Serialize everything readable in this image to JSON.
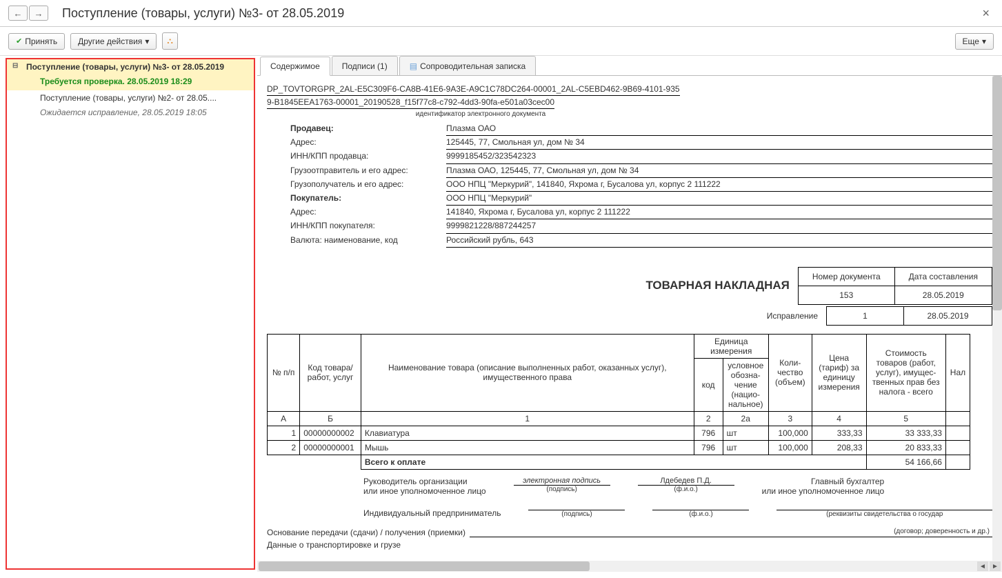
{
  "window": {
    "title": "Поступление (товары, услуги) №3- от 28.05.2019"
  },
  "toolbar": {
    "accept": "Принять",
    "other_actions": "Другие действия",
    "more": "Еще"
  },
  "sidebar": {
    "item1": {
      "title": "Поступление (товары, услуги) №3- от 28.05.2019",
      "status": "Требуется проверка. 28.05.2019 18:29"
    },
    "item2": {
      "title": "Поступление (товары, услуги) №2- от 28.05....",
      "status": "Ожидается исправление, 28.05.2019 18:05"
    }
  },
  "tabs": {
    "content": "Содержимое",
    "signatures": "Подписи (1)",
    "note": "Сопроводительная записка"
  },
  "doc": {
    "id_line1": "DP_TOVTORGPR_2AL-E5C309F6-CA8B-41E6-9A3E-A9C1C78DC264-00001_2AL-C5EBD462-9B69-4101-935",
    "id_line2": "9-B1845EEA1763-00001_20190528_f15f77c8-c792-4dd3-90fa-e501a03cec00",
    "id_caption": "идентификатор электронного документа",
    "labels": {
      "seller": "Продавец:",
      "address": "Адрес:",
      "seller_inn": "ИНН/КПП продавца:",
      "shipper": "Грузоотправитель и его адрес:",
      "consignee": "Грузополучатель и его адрес:",
      "buyer": "Покупатель:",
      "buyer_address": "Адрес:",
      "buyer_inn": "ИНН/КПП покупателя:",
      "currency": "Валюта: наименование, код"
    },
    "values": {
      "seller": "Плазма ОАО",
      "address": "125445, 77, Смольная ул, дом № 34",
      "seller_inn": "9999185452/323542323",
      "shipper": "Плазма ОАО, 125445, 77, Смольная ул, дом № 34",
      "consignee": "ООО НПЦ \"Меркурий\", 141840, Яхрома г, Бусалова ул, корпус 2 111222",
      "buyer": "ООО НПЦ \"Меркурий\"",
      "buyer_address": "141840, Яхрома г, Бусалова ул, корпус 2 111222",
      "buyer_inn": "9999821228/887244257",
      "currency": "Российский рубль, 643"
    },
    "invoice": {
      "title": "ТОВАРНАЯ НАКЛАДНАЯ",
      "h_num": "Номер документа",
      "h_date": "Дата составления",
      "num": "153",
      "date": "28.05.2019",
      "correction_label": "Исправление",
      "corr_num": "1",
      "corr_date": "28.05.2019"
    },
    "goods": {
      "headers": {
        "npp": "№ п/п",
        "code": "Код товара/ работ, услуг",
        "name": "Наименование товара (описание выполненных работ, оказанных услуг), имущественного права",
        "unit_group": "Единица измерения",
        "unit_code": "код",
        "unit_name": "условное обозна-чение (нацио-нальное)",
        "qty": "Коли-чество (объем)",
        "price": "Цена (тариф) за единицу измерения",
        "cost": "Стоимость товаров (работ, услуг), имущес-твенных прав без налога - всего",
        "extra": "Нал"
      },
      "cols": {
        "a": "А",
        "b": "Б",
        "c1": "1",
        "c2": "2",
        "c2a": "2а",
        "c3": "3",
        "c4": "4",
        "c5": "5"
      },
      "rows": [
        {
          "n": "1",
          "code": "00000000002",
          "name": "Клавиатура",
          "ucode": "796",
          "uname": "шт",
          "qty": "100,000",
          "price": "333,33",
          "cost": "33 333,33"
        },
        {
          "n": "2",
          "code": "00000000001",
          "name": "Мышь",
          "ucode": "796",
          "uname": "шт",
          "qty": "100,000",
          "price": "208,33",
          "cost": "20 833,33"
        }
      ],
      "total_label": "Всего к оплате",
      "total": "54 166,66"
    },
    "sign": {
      "head1": "Руководитель организации",
      "head2": "или иное уполномоченное лицо",
      "esign": "электронная подпись",
      "sign_sub": "(подпись)",
      "fio": "Лдебедев П.Д.",
      "fio_sub": "(ф.и.о.)",
      "chief_acc1": "Главный бухгалтер",
      "chief_acc2": "или иное уполномоченное лицо",
      "ip": "Индивидуальный предприниматель",
      "rekv": "(реквизиты свидетельства о государ"
    },
    "footer": {
      "basis": "Основание передачи (сдачи) / получения (приемки)",
      "basis_hint": "(договор; доверенность и др.)",
      "transport": "Данные о транспортировке и грузе"
    }
  }
}
